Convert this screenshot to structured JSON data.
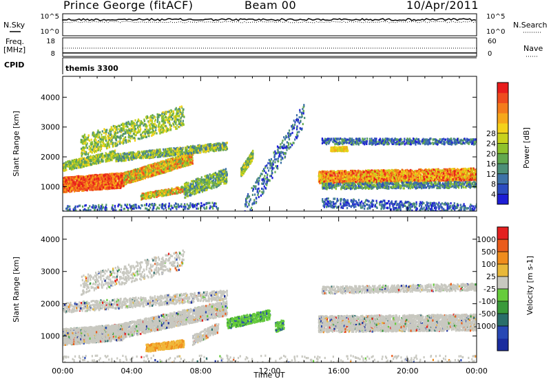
{
  "header": {
    "station": "Prince George (fitACF)",
    "beam": "Beam 00",
    "date": "10/Apr/2011"
  },
  "info_panels": {
    "nsky_label": "N.Sky",
    "nsky_ticks": [
      "10^5",
      "10^0"
    ],
    "nsearch_label": "N.Search",
    "nsearch_ticks": [
      "10^5",
      "10^0"
    ],
    "freq_label": [
      "Freq.",
      "[MHz]"
    ],
    "freq_ticks": [
      "18",
      "8"
    ],
    "nave_label": "Nave",
    "nave_ticks": [
      "60",
      "0"
    ],
    "cpid_label": "CPID",
    "cpid_value": "themis 3300"
  },
  "chart_data": [
    {
      "type": "heatmap",
      "name": "power",
      "ylabel": "Slant Range [km]",
      "xlabel": "Time UT",
      "x_ticks": [
        "00:00",
        "04:00",
        "08:00",
        "12:00",
        "16:00",
        "20:00",
        "00:00"
      ],
      "x_range_hours": [
        0,
        24
      ],
      "ylim": [
        180,
        4700
      ],
      "y_ticks": [
        1000,
        2000,
        3000,
        4000
      ],
      "colorbar": {
        "label": "Power [dB]",
        "ticks": [
          4,
          8,
          12,
          16,
          20,
          24,
          28
        ],
        "colors": [
          "#1d1dd6",
          "#2c4cc0",
          "#3e72a8",
          "#4d8f78",
          "#62a84e",
          "#8fc22c",
          "#c8d21c",
          "#f4d21a",
          "#f6a81a",
          "#f47c1c",
          "#ee4c1e",
          "#e81c1c"
        ]
      }
    },
    {
      "type": "heatmap",
      "name": "velocity",
      "ylabel": "Slant Range [km]",
      "xlabel": "Time UT",
      "x_ticks": [
        "00:00",
        "04:00",
        "08:00",
        "12:00",
        "16:00",
        "20:00",
        "00:00"
      ],
      "x_range_hours": [
        0,
        24
      ],
      "ylim": [
        180,
        4700
      ],
      "y_ticks": [
        1000,
        2000,
        3000,
        4000
      ],
      "colorbar": {
        "label": "Velocity [m s-1]",
        "ticks": [
          "1000",
          "500",
          "100",
          "25",
          "-25",
          "-100",
          "-500",
          "-1000"
        ],
        "colors": [
          "#1a2c9e",
          "#2848b4",
          "#2a6e6a",
          "#3a9a3a",
          "#66cc3c",
          "#c8c8c0",
          "#e8b83a",
          "#f08c1c",
          "#ea5c1c",
          "#e42020"
        ]
      }
    }
  ]
}
